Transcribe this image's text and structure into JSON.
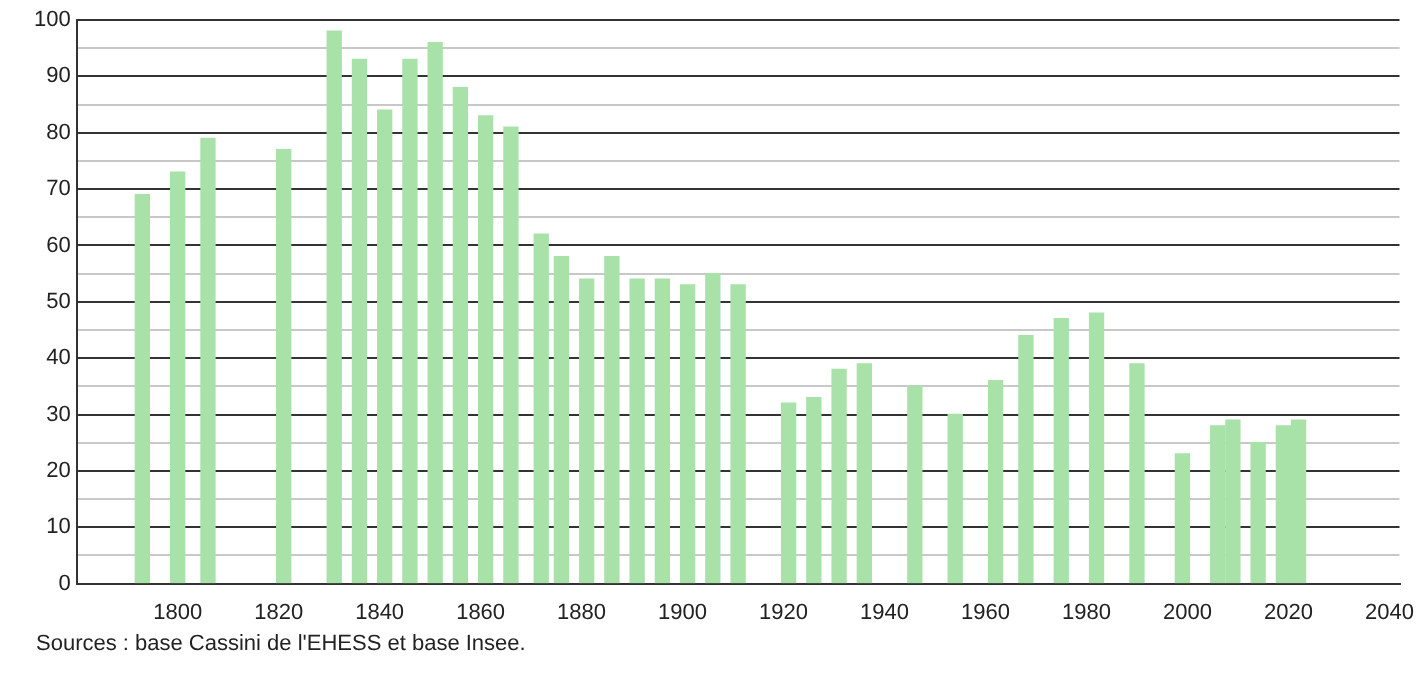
{
  "chart_data": {
    "type": "bar",
    "x": [
      1793,
      1800,
      1806,
      1821,
      1831,
      1836,
      1841,
      1846,
      1851,
      1856,
      1861,
      1866,
      1872,
      1876,
      1881,
      1886,
      1891,
      1896,
      1901,
      1906,
      1911,
      1921,
      1926,
      1931,
      1936,
      1946,
      1954,
      1962,
      1968,
      1975,
      1982,
      1990,
      1999,
      2006,
      2009,
      2014,
      2019,
      2022
    ],
    "values": [
      69,
      73,
      79,
      77,
      98,
      93,
      84,
      93,
      96,
      88,
      83,
      81,
      62,
      58,
      54,
      58,
      54,
      54,
      53,
      55,
      53,
      32,
      33,
      38,
      39,
      35,
      30,
      36,
      44,
      47,
      48,
      39,
      23,
      28,
      29,
      25,
      28,
      29
    ],
    "color": "#a8e2a8",
    "xlim": [
      1780,
      2042
    ],
    "xticks": [
      1800,
      1820,
      1840,
      1860,
      1880,
      1900,
      1920,
      1940,
      1960,
      1980,
      2000,
      2020,
      2040
    ],
    "ylim": [
      0,
      100
    ],
    "yticks": [
      0,
      {
        "value": 5,
        "label": null
      },
      10,
      {
        "value": 15,
        "label": null
      },
      20,
      {
        "value": 25,
        "label": null
      },
      30,
      {
        "value": 35,
        "label": null
      },
      40,
      {
        "value": 45,
        "label": null
      },
      50,
      {
        "value": 55,
        "label": null
      },
      60,
      {
        "value": 65,
        "label": null
      },
      70,
      {
        "value": 75,
        "label": null
      },
      80,
      {
        "value": 85,
        "label": null
      },
      90,
      {
        "value": 95,
        "label": null
      },
      100
    ],
    "grid": "y",
    "legend": false,
    "annotations": [
      "Sources : base Cassini de l'EHESS et base Insee."
    ]
  }
}
